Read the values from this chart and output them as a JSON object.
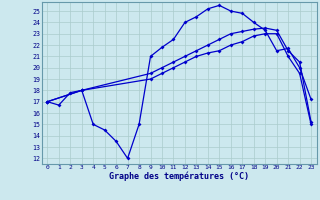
{
  "xlabel": "Graphe des températures (°C)",
  "bg_color": "#cce8ee",
  "grid_color": "#aacccc",
  "line_color": "#0000cc",
  "xlim": [
    -0.5,
    23.5
  ],
  "ylim": [
    11.5,
    25.8
  ],
  "xticks": [
    0,
    1,
    2,
    3,
    4,
    5,
    6,
    7,
    8,
    9,
    10,
    11,
    12,
    13,
    14,
    15,
    16,
    17,
    18,
    19,
    20,
    21,
    22,
    23
  ],
  "yticks": [
    12,
    13,
    14,
    15,
    16,
    17,
    18,
    19,
    20,
    21,
    22,
    23,
    24,
    25
  ],
  "x_max": [
    0,
    1,
    2,
    3,
    4,
    5,
    6,
    7,
    8,
    9,
    10,
    11,
    12,
    13,
    14,
    15,
    16,
    17,
    18,
    19,
    20,
    21,
    22,
    23
  ],
  "y_max": [
    17.0,
    16.7,
    17.8,
    18.0,
    15.0,
    14.5,
    13.5,
    12.0,
    15.0,
    21.0,
    21.8,
    22.5,
    24.0,
    24.5,
    25.2,
    25.5,
    25.0,
    24.8,
    24.0,
    23.3,
    21.5,
    21.7,
    20.0,
    17.2
  ],
  "x_mean": [
    0,
    3,
    9,
    10,
    11,
    12,
    13,
    14,
    15,
    16,
    17,
    18,
    19,
    20,
    21,
    22,
    23
  ],
  "y_mean": [
    17.0,
    18.0,
    19.5,
    20.0,
    20.5,
    21.0,
    21.5,
    22.0,
    22.5,
    23.0,
    23.2,
    23.4,
    23.5,
    23.3,
    21.5,
    20.5,
    15.2
  ],
  "x_min": [
    0,
    3,
    9,
    10,
    11,
    12,
    13,
    14,
    15,
    16,
    17,
    18,
    19,
    20,
    21,
    22,
    23
  ],
  "y_min": [
    17.0,
    18.0,
    19.0,
    19.5,
    20.0,
    20.5,
    21.0,
    21.3,
    21.5,
    22.0,
    22.3,
    22.8,
    23.0,
    23.0,
    21.0,
    19.5,
    15.0
  ]
}
